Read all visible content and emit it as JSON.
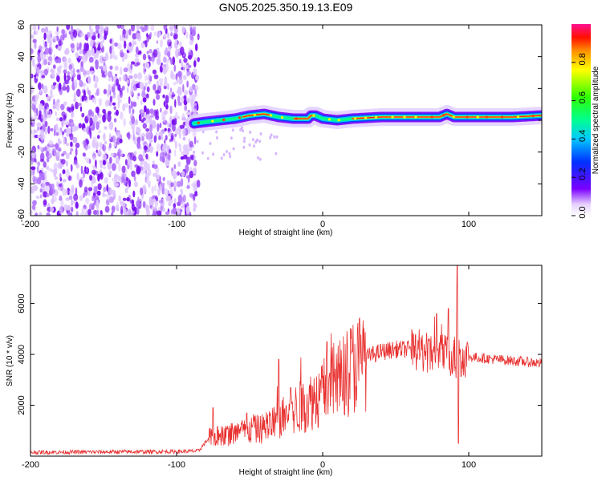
{
  "figure_title": "GN05.2025.350.19.13.E09",
  "chart_data": [
    {
      "type": "heatmap",
      "xlabel": "Height of straight line (km)",
      "ylabel": "Frequency (Hz)",
      "xlim": [
        -200,
        150
      ],
      "ylim": [
        -60,
        60
      ],
      "xticks": [
        -200,
        -100,
        0,
        100
      ],
      "yticks": [
        60,
        40,
        20,
        0,
        -20,
        -40,
        -60
      ],
      "colorbar": {
        "label": "Normalized spectral amplitude",
        "range": [
          0,
          1
        ],
        "ticks": [
          0.0,
          0.2,
          0.4,
          0.6,
          0.8
        ],
        "tick_labels": [
          "0.0",
          "0.2",
          "0.4",
          "0.6",
          "0.8"
        ]
      },
      "features": {
        "noise_region_x": [
          -200,
          -88
        ],
        "ridge_x": [
          -88,
          150
        ],
        "ridge_freq_points": [
          [
            -88,
            -2
          ],
          [
            -80,
            -1
          ],
          [
            -70,
            0
          ],
          [
            -60,
            1
          ],
          [
            -50,
            3
          ],
          [
            -40,
            4
          ],
          [
            -30,
            2
          ],
          [
            -20,
            1
          ],
          [
            -10,
            1
          ],
          [
            -8,
            3
          ],
          [
            -5,
            3
          ],
          [
            0,
            1
          ],
          [
            10,
            0
          ],
          [
            20,
            1
          ],
          [
            40,
            2
          ],
          [
            60,
            2
          ],
          [
            80,
            2
          ],
          [
            85,
            4
          ],
          [
            90,
            2
          ],
          [
            110,
            2
          ],
          [
            130,
            2
          ],
          [
            150,
            3
          ]
        ]
      }
    },
    {
      "type": "line",
      "xlabel": "Height of straight line (km)",
      "ylabel": "SNR (10 * v/v)",
      "xlim": [
        -200,
        150
      ],
      "ylim": [
        0,
        7500
      ],
      "xticks": [
        -200,
        -100,
        0,
        100
      ],
      "yticks": [
        2000,
        4000,
        6000
      ],
      "series_color": "#e8302f",
      "envelope": [
        [
          -200,
          150
        ],
        [
          -100,
          180
        ],
        [
          -85,
          200
        ],
        [
          -78,
          700
        ],
        [
          -70,
          800
        ],
        [
          -60,
          900
        ],
        [
          -50,
          1000
        ],
        [
          -40,
          1100
        ],
        [
          -30,
          1400
        ],
        [
          -20,
          1800
        ],
        [
          -10,
          2100
        ],
        [
          0,
          2500
        ],
        [
          10,
          3000
        ],
        [
          20,
          3500
        ],
        [
          30,
          3900
        ],
        [
          40,
          4100
        ],
        [
          50,
          4200
        ],
        [
          60,
          4200
        ],
        [
          70,
          4100
        ],
        [
          80,
          4000
        ],
        [
          90,
          3950
        ],
        [
          100,
          3900
        ],
        [
          110,
          3850
        ],
        [
          120,
          3800
        ],
        [
          130,
          3750
        ],
        [
          140,
          3700
        ],
        [
          150,
          3650
        ]
      ],
      "spikes": [
        [
          -75,
          1900
        ],
        [
          -52,
          1700
        ],
        [
          -30,
          3800
        ],
        [
          -22,
          2700
        ],
        [
          3,
          4500
        ],
        [
          62,
          4800
        ],
        [
          78,
          5600
        ],
        [
          86,
          5800
        ],
        [
          92,
          7500
        ],
        [
          93,
          500
        ]
      ]
    }
  ]
}
